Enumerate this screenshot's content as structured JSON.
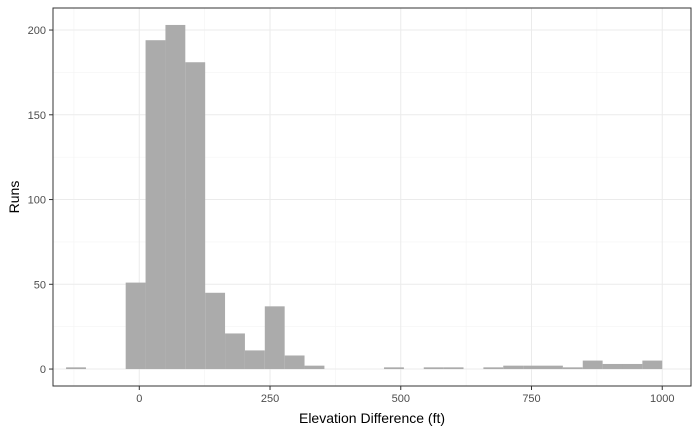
{
  "chart_data": {
    "type": "bar",
    "subtype": "histogram",
    "title": "",
    "xlabel": "Elevation Difference (ft)",
    "ylabel": "Runs",
    "xlim": [
      -165,
      1055
    ],
    "ylim": [
      -10,
      213
    ],
    "x_ticks": [
      0,
      250,
      500,
      750,
      1000
    ],
    "y_ticks": [
      0,
      50,
      100,
      150,
      200
    ],
    "x_tick_labels": [
      "0",
      "250",
      "500",
      "750",
      "1000"
    ],
    "y_tick_labels": [
      "0",
      "50",
      "100",
      "150",
      "200"
    ],
    "grid": true,
    "bin_width": 38,
    "bins": [
      {
        "x0": -140,
        "x1": -102,
        "count": 1
      },
      {
        "x0": -102,
        "x1": -64,
        "count": 0
      },
      {
        "x0": -64,
        "x1": -26,
        "count": 0
      },
      {
        "x0": -26,
        "x1": 12,
        "count": 51
      },
      {
        "x0": 12,
        "x1": 50,
        "count": 194
      },
      {
        "x0": 50,
        "x1": 88,
        "count": 203
      },
      {
        "x0": 88,
        "x1": 126,
        "count": 181
      },
      {
        "x0": 126,
        "x1": 164,
        "count": 45
      },
      {
        "x0": 164,
        "x1": 202,
        "count": 21
      },
      {
        "x0": 202,
        "x1": 240,
        "count": 11
      },
      {
        "x0": 240,
        "x1": 278,
        "count": 37
      },
      {
        "x0": 278,
        "x1": 316,
        "count": 8
      },
      {
        "x0": 316,
        "x1": 354,
        "count": 2
      },
      {
        "x0": 354,
        "x1": 392,
        "count": 0
      },
      {
        "x0": 392,
        "x1": 430,
        "count": 0
      },
      {
        "x0": 430,
        "x1": 468,
        "count": 0
      },
      {
        "x0": 468,
        "x1": 506,
        "count": 1
      },
      {
        "x0": 506,
        "x1": 544,
        "count": 0
      },
      {
        "x0": 544,
        "x1": 582,
        "count": 1
      },
      {
        "x0": 582,
        "x1": 620,
        "count": 1
      },
      {
        "x0": 620,
        "x1": 658,
        "count": 0
      },
      {
        "x0": 658,
        "x1": 696,
        "count": 1
      },
      {
        "x0": 696,
        "x1": 734,
        "count": 2
      },
      {
        "x0": 734,
        "x1": 772,
        "count": 2
      },
      {
        "x0": 772,
        "x1": 810,
        "count": 2
      },
      {
        "x0": 810,
        "x1": 848,
        "count": 1
      },
      {
        "x0": 848,
        "x1": 886,
        "count": 5
      },
      {
        "x0": 886,
        "x1": 924,
        "count": 3
      },
      {
        "x0": 924,
        "x1": 962,
        "count": 3
      },
      {
        "x0": 962,
        "x1": 1000,
        "count": 5
      }
    ],
    "bar_color": "#ababab"
  }
}
